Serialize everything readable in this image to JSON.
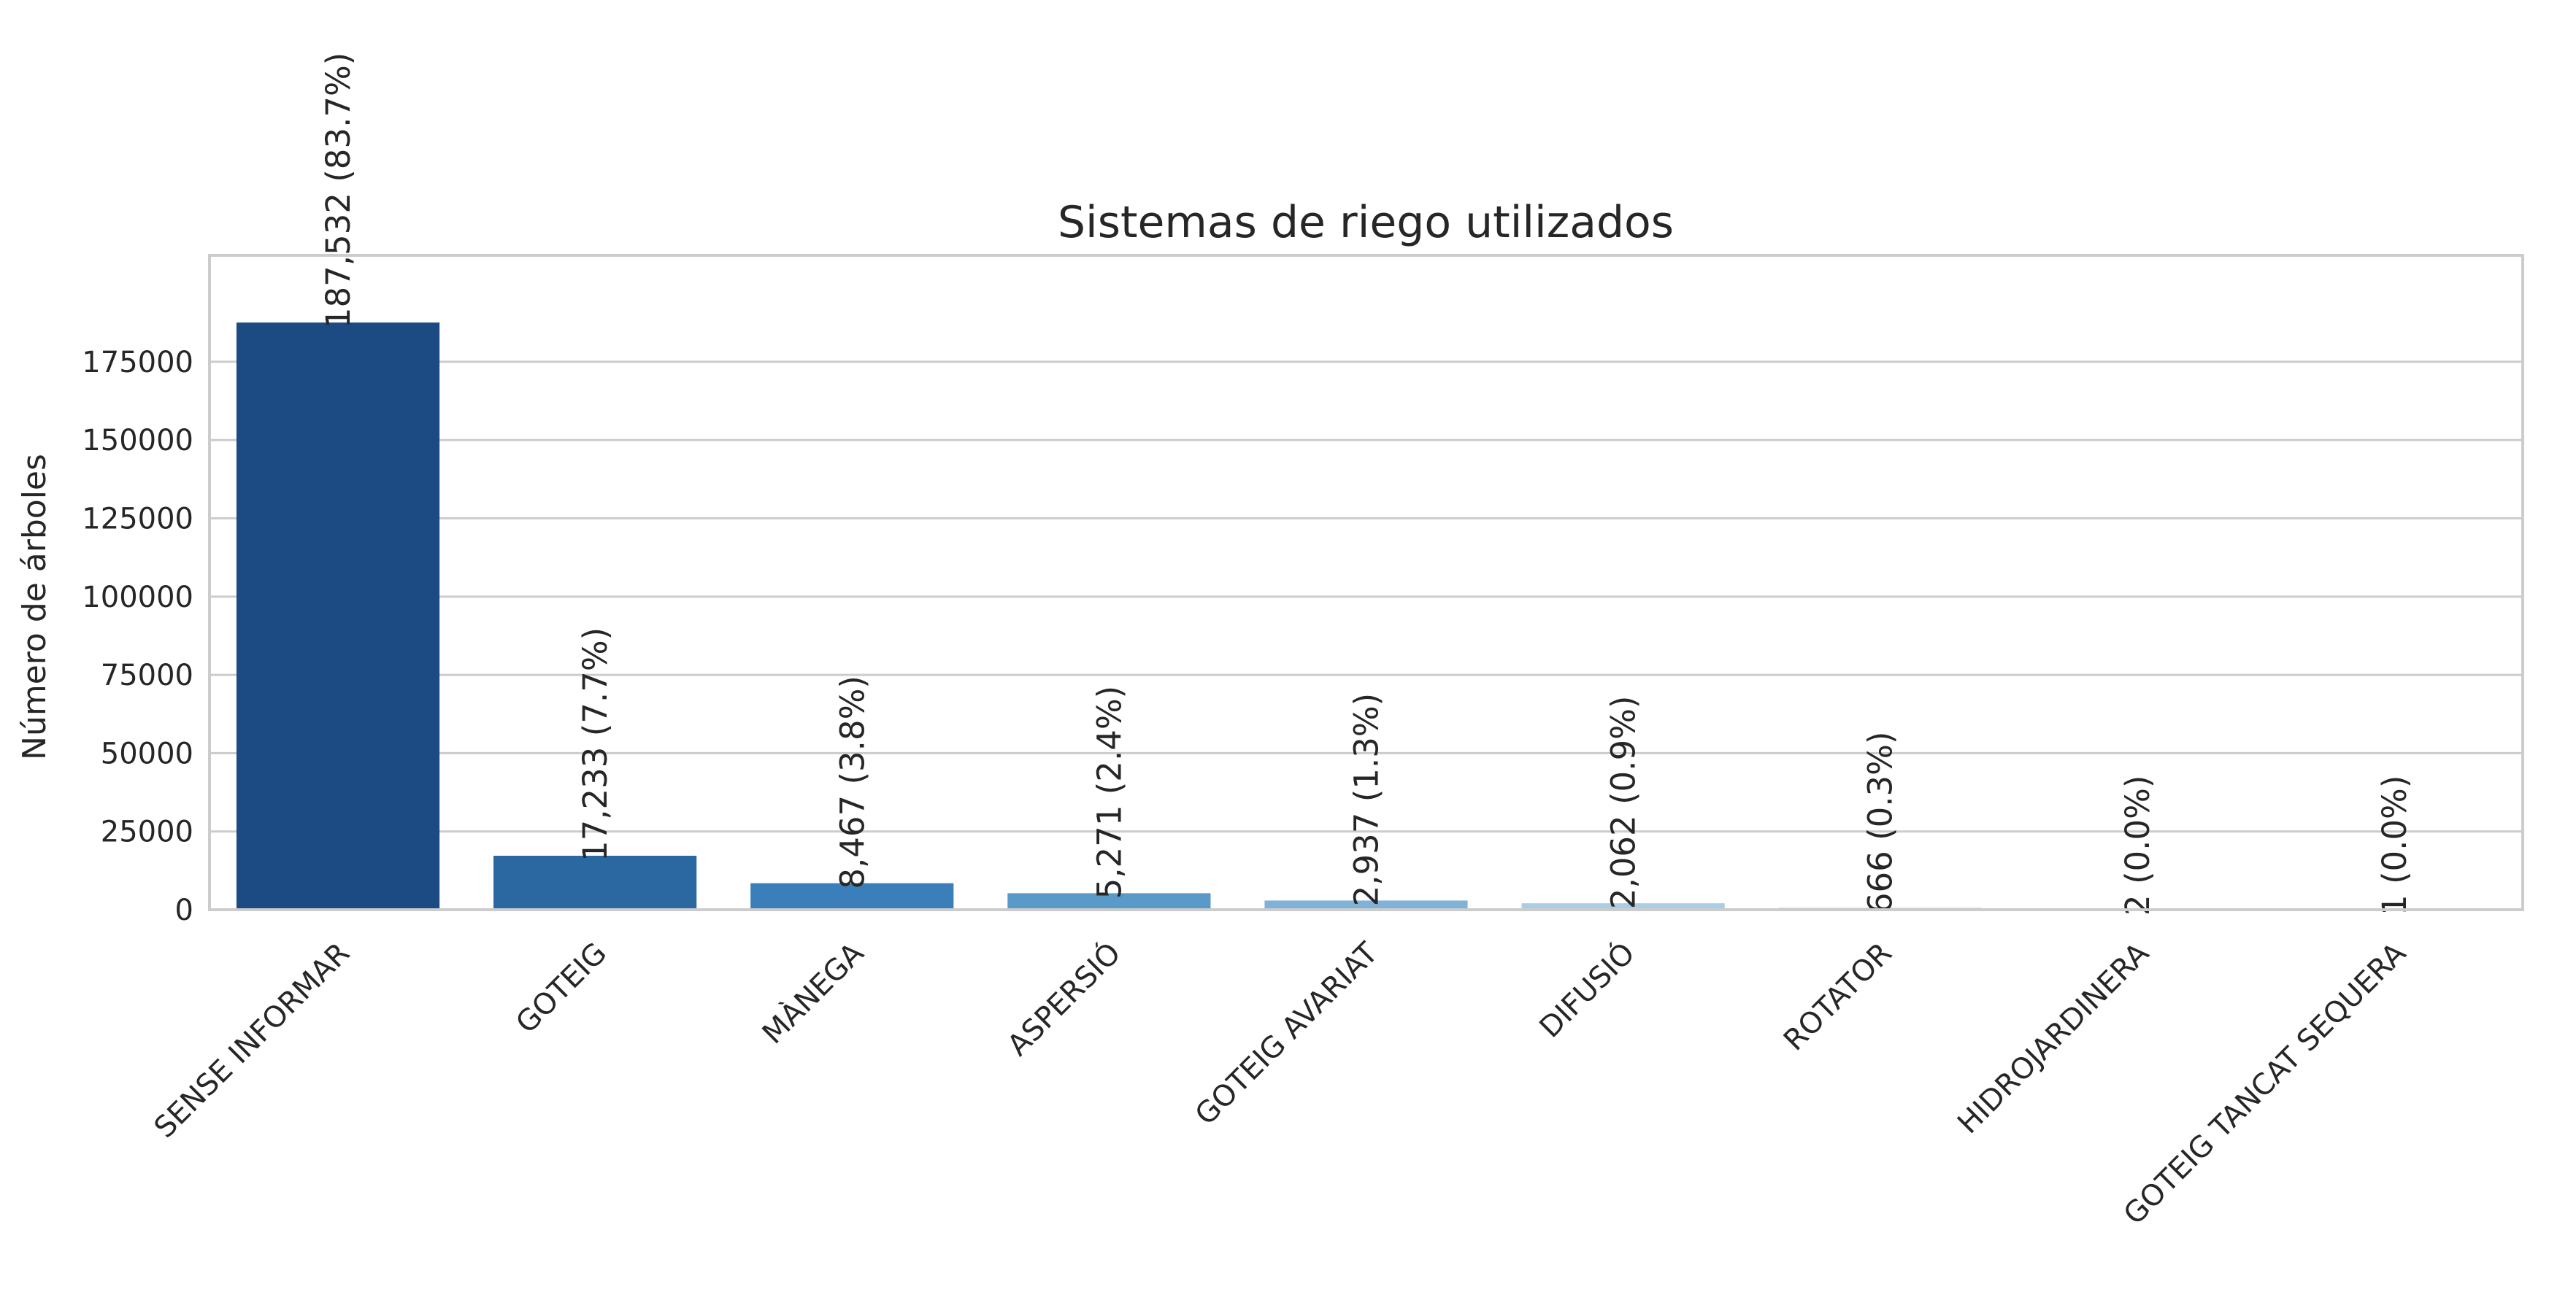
{
  "chart_data": {
    "type": "bar",
    "title": "Sistemas de riego utilizados",
    "xlabel": "",
    "ylabel": "Número de árboles",
    "categories": [
      "SENSE INFORMAR",
      "GOTEIG",
      "MÀNEGA",
      "ASPERSIÓ",
      "GOTEIG AVARIAT",
      "DIFUSIÓ",
      "ROTATOR",
      "HIDROJARDINERA",
      "GOTEIG TANCAT SEQUERA"
    ],
    "values": [
      187532,
      17233,
      8467,
      5271,
      2937,
      2062,
      666,
      2,
      1
    ],
    "data_labels": [
      "187,532 (83.7%)",
      "17,233 (7.7%)",
      "8,467 (3.8%)",
      "5,271 (2.4%)",
      "2,937 (1.3%)",
      "2,062 (0.9%)",
      "666 (0.3%)",
      "2 (0.0%)",
      "1 (0.0%)"
    ],
    "colors": [
      "#1b4b82",
      "#2b67a0",
      "#3a7fb9",
      "#5a9ac8",
      "#80b2d8",
      "#a9cde4",
      "#c6dbef",
      "#dde9f5",
      "#eef4fa"
    ],
    "yticks": [
      0,
      25000,
      50000,
      75000,
      100000,
      125000,
      150000,
      175000
    ],
    "ylim": [
      0,
      209000
    ],
    "grid": "horizontal",
    "legend": "none"
  }
}
